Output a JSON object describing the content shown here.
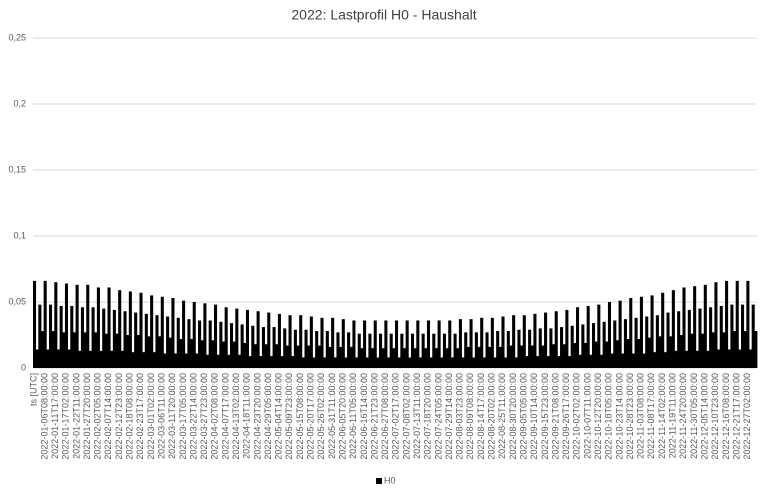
{
  "chart_data": {
    "type": "bar",
    "title": "2022: Lastprofil H0 - Haushalt",
    "categories": [
      "ts [UTC]",
      null,
      null,
      null,
      "2022-01-06T08:00:00",
      null,
      null,
      null,
      "2022-01-11T17:00:00",
      null,
      null,
      null,
      "2022-01-17T02:00:00",
      null,
      null,
      null,
      "2022-01-22T11:00:00",
      null,
      null,
      null,
      "2022-01-27T20:00:00",
      null,
      null,
      null,
      "2022-02-02T05:00:00",
      null,
      null,
      null,
      "2022-02-07T14:00:00",
      null,
      null,
      null,
      "2022-02-12T23:00:00",
      null,
      null,
      null,
      "2022-02-18T08:00:00",
      null,
      null,
      null,
      "2022-02-23T17:00:00",
      null,
      null,
      null,
      "2022-03-01T02:00:00",
      null,
      null,
      null,
      "2022-03-06T11:00:00",
      null,
      null,
      null,
      "2022-03-11T20:00:00",
      null,
      null,
      null,
      "2022-03-17T05:00:00",
      null,
      null,
      null,
      "2022-03-22T14:00:00",
      null,
      null,
      null,
      "2022-03-27T23:00:00",
      null,
      null,
      null,
      "2022-04-02T08:00:00",
      null,
      null,
      null,
      "2022-04-07T17:00:00",
      null,
      null,
      null,
      "2022-04-13T02:00:00",
      null,
      null,
      null,
      "2022-04-18T11:00:00",
      null,
      null,
      null,
      "2022-04-23T20:00:00",
      null,
      null,
      null,
      "2022-04-29T05:00:00",
      null,
      null,
      null,
      "2022-05-04T14:00:00",
      null,
      null,
      null,
      "2022-05-09T23:00:00",
      null,
      null,
      null,
      "2022-05-15T08:00:00",
      null,
      null,
      null,
      "2022-05-20T17:00:00",
      null,
      null,
      null,
      "2022-05-26T02:00:00",
      null,
      null,
      null,
      "2022-05-31T11:00:00",
      null,
      null,
      null,
      "2022-06-05T20:00:00",
      null,
      null,
      null,
      "2022-06-11T05:00:00",
      null,
      null,
      null,
      "2022-06-16T14:00:00",
      null,
      null,
      null,
      "2022-06-21T23:00:00",
      null,
      null,
      null,
      "2022-06-27T08:00:00",
      null,
      null,
      null,
      "2022-07-02T17:00:00",
      null,
      null,
      null,
      "2022-07-08T02:00:00",
      null,
      null,
      null,
      "2022-07-13T11:00:00",
      null,
      null,
      null,
      "2022-07-18T20:00:00",
      null,
      null,
      null,
      "2022-07-24T05:00:00",
      null,
      null,
      null,
      "2022-07-29T14:00:00",
      null,
      null,
      null,
      "2022-08-03T23:00:00",
      null,
      null,
      null,
      "2022-08-09T08:00:00",
      null,
      null,
      null,
      "2022-08-14T17:00:00",
      null,
      null,
      null,
      "2022-08-20T02:00:00",
      null,
      null,
      null,
      "2022-08-25T11:00:00",
      null,
      null,
      null,
      "2022-08-30T20:00:00",
      null,
      null,
      null,
      "2022-09-05T05:00:00",
      null,
      null,
      null,
      "2022-09-10T14:00:00",
      null,
      null,
      null,
      "2022-09-15T23:00:00",
      null,
      null,
      null,
      "2022-09-21T08:00:00",
      null,
      null,
      null,
      "2022-09-26T17:00:00",
      null,
      null,
      null,
      "2022-10-02T02:00:00",
      null,
      null,
      null,
      "2022-10-07T11:00:00",
      null,
      null,
      null,
      "2022-10-12T20:00:00",
      null,
      null,
      null,
      "2022-10-18T05:00:00",
      null,
      null,
      null,
      "2022-10-23T14:00:00",
      null,
      null,
      null,
      "2022-10-28T23:00:00",
      null,
      null,
      null,
      "2022-11-03T08:00:00",
      null,
      null,
      null,
      "2022-11-08T17:00:00",
      null,
      null,
      null,
      "2022-11-14T02:00:00",
      null,
      null,
      null,
      "2022-11-19T11:00:00",
      null,
      null,
      null,
      "2022-11-24T20:00:00",
      null,
      null,
      null,
      "2022-11-30T05:00:00",
      null,
      null,
      null,
      "2022-12-05T14:00:00",
      null,
      null,
      null,
      "2022-12-10T23:00:00",
      null,
      null,
      null,
      "2022-12-16T08:00:00",
      null,
      null,
      null,
      "2022-12-21T17:00:00",
      null,
      null,
      null,
      "2022-12-27T02:00:00",
      null,
      null,
      null
    ],
    "series": [
      {
        "name": "H0",
        "color": "#000000",
        "values": [
          0.066,
          0.014,
          0.048,
          0.028,
          0.066,
          0.014,
          0.048,
          0.028,
          0.065,
          0.014,
          0.047,
          0.027,
          0.064,
          0.014,
          0.047,
          0.027,
          0.063,
          0.013,
          0.046,
          0.027,
          0.063,
          0.013,
          0.046,
          0.027,
          0.061,
          0.013,
          0.045,
          0.026,
          0.061,
          0.013,
          0.044,
          0.026,
          0.059,
          0.013,
          0.043,
          0.025,
          0.058,
          0.012,
          0.042,
          0.025,
          0.057,
          0.012,
          0.041,
          0.024,
          0.055,
          0.012,
          0.04,
          0.024,
          0.054,
          0.011,
          0.039,
          0.023,
          0.053,
          0.011,
          0.038,
          0.022,
          0.051,
          0.011,
          0.037,
          0.022,
          0.05,
          0.011,
          0.036,
          0.021,
          0.049,
          0.01,
          0.036,
          0.021,
          0.048,
          0.01,
          0.035,
          0.02,
          0.046,
          0.01,
          0.034,
          0.02,
          0.045,
          0.01,
          0.033,
          0.019,
          0.044,
          0.009,
          0.032,
          0.018,
          0.043,
          0.009,
          0.031,
          0.018,
          0.042,
          0.009,
          0.031,
          0.018,
          0.041,
          0.009,
          0.03,
          0.017,
          0.04,
          0.009,
          0.029,
          0.017,
          0.04,
          0.008,
          0.029,
          0.017,
          0.039,
          0.008,
          0.028,
          0.017,
          0.038,
          0.008,
          0.028,
          0.016,
          0.038,
          0.008,
          0.027,
          0.016,
          0.037,
          0.008,
          0.027,
          0.016,
          0.036,
          0.008,
          0.026,
          0.015,
          0.036,
          0.008,
          0.026,
          0.015,
          0.036,
          0.008,
          0.026,
          0.015,
          0.036,
          0.008,
          0.026,
          0.015,
          0.036,
          0.008,
          0.026,
          0.015,
          0.036,
          0.008,
          0.026,
          0.015,
          0.036,
          0.008,
          0.026,
          0.015,
          0.036,
          0.008,
          0.026,
          0.015,
          0.036,
          0.008,
          0.026,
          0.015,
          0.036,
          0.008,
          0.026,
          0.015,
          0.037,
          0.008,
          0.027,
          0.016,
          0.037,
          0.008,
          0.027,
          0.016,
          0.038,
          0.008,
          0.027,
          0.016,
          0.038,
          0.008,
          0.028,
          0.016,
          0.039,
          0.008,
          0.028,
          0.017,
          0.04,
          0.008,
          0.029,
          0.017,
          0.04,
          0.009,
          0.029,
          0.017,
          0.041,
          0.009,
          0.03,
          0.017,
          0.042,
          0.009,
          0.03,
          0.018,
          0.043,
          0.009,
          0.031,
          0.018,
          0.044,
          0.009,
          0.032,
          0.019,
          0.046,
          0.01,
          0.033,
          0.019,
          0.047,
          0.01,
          0.034,
          0.02,
          0.048,
          0.01,
          0.035,
          0.02,
          0.05,
          0.011,
          0.036,
          0.021,
          0.051,
          0.011,
          0.037,
          0.022,
          0.053,
          0.011,
          0.038,
          0.022,
          0.054,
          0.011,
          0.039,
          0.023,
          0.055,
          0.012,
          0.04,
          0.024,
          0.057,
          0.012,
          0.042,
          0.024,
          0.059,
          0.013,
          0.043,
          0.025,
          0.061,
          0.013,
          0.044,
          0.026,
          0.062,
          0.013,
          0.045,
          0.026,
          0.063,
          0.013,
          0.046,
          0.027,
          0.065,
          0.014,
          0.047,
          0.027,
          0.066,
          0.014,
          0.048,
          0.028,
          0.066,
          0.014,
          0.048,
          0.028,
          0.066,
          0.014,
          0.048,
          0.028
        ]
      }
    ],
    "ylim": [
      0,
      0.25
    ],
    "yticks": [
      0,
      {
        "value": 0.05,
        "label": "0,05"
      },
      {
        "value": 0.1,
        "label": "0,1"
      },
      {
        "value": 0.15,
        "label": "0,15"
      },
      {
        "value": 0.2,
        "label": "0,2"
      },
      {
        "value": 0.25,
        "label": "0,25"
      }
    ],
    "grid": true,
    "legend": "bottom"
  }
}
